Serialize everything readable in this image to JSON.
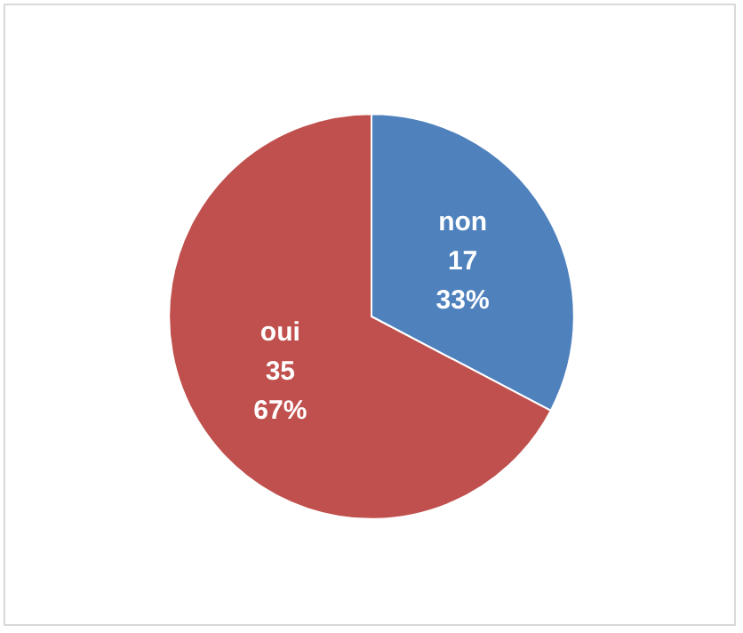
{
  "chart_data": {
    "type": "pie",
    "categories": [
      "non",
      "oui"
    ],
    "values": [
      17,
      35
    ],
    "value_labels": [
      "17\n33%",
      "35\n67%"
    ],
    "colors": [
      "#4f81bd",
      "#c0504d"
    ],
    "legend": false
  }
}
